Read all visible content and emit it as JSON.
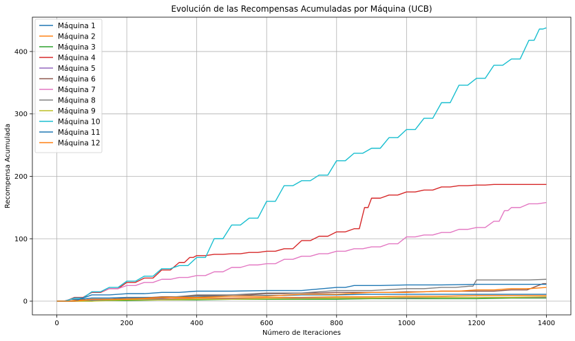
{
  "chart_data": {
    "type": "line",
    "title": "Evolución de las Recompensas Acumuladas por Máquina (UCB)",
    "xlabel": "Número de Iteraciones",
    "ylabel": "Recompensa Acumulada",
    "xlim": [
      -70,
      1470
    ],
    "ylim": [
      -22,
      455
    ],
    "xticks": [
      0,
      200,
      400,
      600,
      800,
      1000,
      1200,
      1400
    ],
    "yticks": [
      0,
      100,
      200,
      300,
      400
    ],
    "grid": true,
    "legend_position": "top-left",
    "series": [
      {
        "name": "Máquina 1",
        "color": "#1f77b4",
        "points": [
          [
            0,
            0
          ],
          [
            40,
            3
          ],
          [
            100,
            5
          ],
          [
            200,
            6
          ],
          [
            400,
            8
          ],
          [
            600,
            9
          ],
          [
            700,
            10
          ],
          [
            900,
            11
          ],
          [
            1000,
            11
          ],
          [
            1400,
            11
          ]
        ]
      },
      {
        "name": "Máquina 2",
        "color": "#ff7f0e",
        "points": [
          [
            0,
            0
          ],
          [
            60,
            2
          ],
          [
            150,
            3
          ],
          [
            250,
            4
          ],
          [
            400,
            5
          ],
          [
            600,
            6
          ],
          [
            800,
            7
          ],
          [
            1000,
            8
          ],
          [
            1200,
            9
          ],
          [
            1400,
            9
          ]
        ]
      },
      {
        "name": "Máquina 3",
        "color": "#2ca02c",
        "points": [
          [
            0,
            0
          ],
          [
            100,
            1
          ],
          [
            300,
            2
          ],
          [
            500,
            3
          ],
          [
            700,
            3
          ],
          [
            900,
            4
          ],
          [
            1100,
            4
          ],
          [
            1300,
            5
          ],
          [
            1400,
            5
          ]
        ]
      },
      {
        "name": "Máquina 4",
        "color": "#d62728",
        "points": [
          [
            0,
            0
          ],
          [
            50,
            6
          ],
          [
            100,
            14
          ],
          [
            150,
            20
          ],
          [
            200,
            30
          ],
          [
            250,
            37
          ],
          [
            300,
            50
          ],
          [
            350,
            62
          ],
          [
            380,
            70
          ],
          [
            400,
            73
          ],
          [
            450,
            75
          ],
          [
            500,
            76
          ],
          [
            550,
            78
          ],
          [
            600,
            80
          ],
          [
            650,
            84
          ],
          [
            700,
            97
          ],
          [
            750,
            104
          ],
          [
            800,
            111
          ],
          [
            850,
            116
          ],
          [
            880,
            150
          ],
          [
            900,
            165
          ],
          [
            950,
            170
          ],
          [
            1000,
            175
          ],
          [
            1050,
            178
          ],
          [
            1100,
            183
          ],
          [
            1150,
            185
          ],
          [
            1200,
            186
          ],
          [
            1250,
            187
          ],
          [
            1300,
            187
          ],
          [
            1400,
            187
          ]
        ]
      },
      {
        "name": "Máquina 5",
        "color": "#9467bd",
        "points": [
          [
            0,
            0
          ],
          [
            100,
            2
          ],
          [
            300,
            3
          ],
          [
            500,
            4
          ],
          [
            700,
            5
          ],
          [
            900,
            5
          ],
          [
            1100,
            6
          ],
          [
            1400,
            6
          ]
        ]
      },
      {
        "name": "Máquina 6",
        "color": "#8c564b",
        "points": [
          [
            0,
            0
          ],
          [
            100,
            3
          ],
          [
            200,
            5
          ],
          [
            300,
            7
          ],
          [
            400,
            9
          ],
          [
            500,
            10
          ],
          [
            600,
            12
          ],
          [
            700,
            13
          ],
          [
            800,
            14
          ],
          [
            900,
            14
          ],
          [
            1000,
            15
          ],
          [
            1100,
            16
          ],
          [
            1200,
            16
          ],
          [
            1300,
            18
          ],
          [
            1390,
            28
          ],
          [
            1400,
            28
          ]
        ]
      },
      {
        "name": "Máquina 7",
        "color": "#e377c2",
        "points": [
          [
            0,
            0
          ],
          [
            50,
            5
          ],
          [
            100,
            15
          ],
          [
            150,
            20
          ],
          [
            200,
            25
          ],
          [
            250,
            30
          ],
          [
            300,
            35
          ],
          [
            350,
            38
          ],
          [
            400,
            41
          ],
          [
            450,
            47
          ],
          [
            500,
            54
          ],
          [
            550,
            58
          ],
          [
            600,
            60
          ],
          [
            650,
            67
          ],
          [
            700,
            72
          ],
          [
            750,
            76
          ],
          [
            800,
            80
          ],
          [
            850,
            84
          ],
          [
            900,
            87
          ],
          [
            950,
            92
          ],
          [
            1000,
            103
          ],
          [
            1050,
            106
          ],
          [
            1100,
            110
          ],
          [
            1150,
            115
          ],
          [
            1200,
            118
          ],
          [
            1250,
            128
          ],
          [
            1280,
            145
          ],
          [
            1300,
            150
          ],
          [
            1350,
            156
          ],
          [
            1400,
            158
          ]
        ]
      },
      {
        "name": "Máquina 8",
        "color": "#7f7f7f",
        "points": [
          [
            0,
            0
          ],
          [
            200,
            5
          ],
          [
            400,
            10
          ],
          [
            600,
            13
          ],
          [
            800,
            17
          ],
          [
            1000,
            20
          ],
          [
            1100,
            22
          ],
          [
            1180,
            24
          ],
          [
            1200,
            34
          ],
          [
            1300,
            34
          ],
          [
            1400,
            35
          ]
        ]
      },
      {
        "name": "Máquina 9",
        "color": "#bcbd22",
        "points": [
          [
            0,
            0
          ],
          [
            200,
            2
          ],
          [
            400,
            3
          ],
          [
            600,
            4
          ],
          [
            800,
            5
          ],
          [
            1000,
            6
          ],
          [
            1200,
            6
          ],
          [
            1400,
            7
          ]
        ]
      },
      {
        "name": "Máquina 10",
        "color": "#17becf",
        "points": [
          [
            0,
            0
          ],
          [
            50,
            5
          ],
          [
            100,
            15
          ],
          [
            150,
            22
          ],
          [
            200,
            32
          ],
          [
            250,
            40
          ],
          [
            300,
            52
          ],
          [
            350,
            57
          ],
          [
            400,
            70
          ],
          [
            450,
            100
          ],
          [
            500,
            122
          ],
          [
            550,
            133
          ],
          [
            600,
            160
          ],
          [
            650,
            185
          ],
          [
            700,
            193
          ],
          [
            750,
            202
          ],
          [
            800,
            225
          ],
          [
            850,
            237
          ],
          [
            900,
            245
          ],
          [
            950,
            262
          ],
          [
            1000,
            275
          ],
          [
            1050,
            293
          ],
          [
            1100,
            318
          ],
          [
            1150,
            346
          ],
          [
            1200,
            357
          ],
          [
            1250,
            378
          ],
          [
            1300,
            388
          ],
          [
            1350,
            418
          ],
          [
            1380,
            436
          ],
          [
            1400,
            438
          ]
        ]
      },
      {
        "name": "Máquina 11",
        "color": "#1f77b4",
        "points": [
          [
            0,
            0
          ],
          [
            100,
            10
          ],
          [
            200,
            12
          ],
          [
            300,
            14
          ],
          [
            400,
            16
          ],
          [
            600,
            17
          ],
          [
            800,
            22
          ],
          [
            850,
            25
          ],
          [
            1000,
            26
          ],
          [
            1200,
            27
          ],
          [
            1400,
            27
          ]
        ]
      },
      {
        "name": "Máquina 12",
        "color": "#ff7f0e",
        "points": [
          [
            0,
            0
          ],
          [
            100,
            3
          ],
          [
            300,
            6
          ],
          [
            500,
            8
          ],
          [
            700,
            11
          ],
          [
            900,
            14
          ],
          [
            1100,
            16
          ],
          [
            1200,
            18
          ],
          [
            1300,
            20
          ],
          [
            1400,
            22
          ]
        ]
      }
    ]
  }
}
